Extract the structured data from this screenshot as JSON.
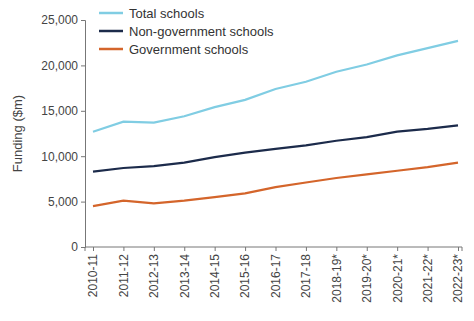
{
  "chart_data": {
    "type": "line",
    "y_label": "Funding ($m)",
    "categories": [
      "2010-11",
      "2011-12",
      "2012-13",
      "2013-14",
      "2014-15",
      "2015-16",
      "2016-17",
      "2017-18",
      "2018-19*",
      "2019-20*",
      "2020-21*",
      "2021-22*",
      "2022-23*"
    ],
    "series": [
      {
        "name": "Total schools",
        "color": "#80cde3",
        "values": [
          12700,
          13800,
          13700,
          14400,
          15400,
          16200,
          17400,
          18200,
          19300,
          20100,
          21100,
          21900,
          22700
        ]
      },
      {
        "name": "Non-government schools",
        "color": "#1c2b4b",
        "values": [
          8300,
          8700,
          8900,
          9300,
          9900,
          10400,
          10800,
          11200,
          11700,
          12100,
          12700,
          13000,
          13400
        ]
      },
      {
        "name": "Government schools",
        "color": "#d4652b",
        "values": [
          4500,
          5100,
          4800,
          5100,
          5500,
          5900,
          6600,
          7100,
          7600,
          8000,
          8400,
          8800,
          9300
        ]
      }
    ],
    "ylim": [
      0,
      25000
    ],
    "yticks": [
      0,
      {
        "value": 5000,
        "label": "5,000"
      },
      {
        "value": 10000,
        "label": "10,000"
      },
      {
        "value": 15000,
        "label": "15,000"
      },
      {
        "value": 20000,
        "label": "20,000"
      },
      {
        "value": 25000,
        "label": "25,000"
      }
    ],
    "grid": false,
    "legend": "upper left"
  }
}
